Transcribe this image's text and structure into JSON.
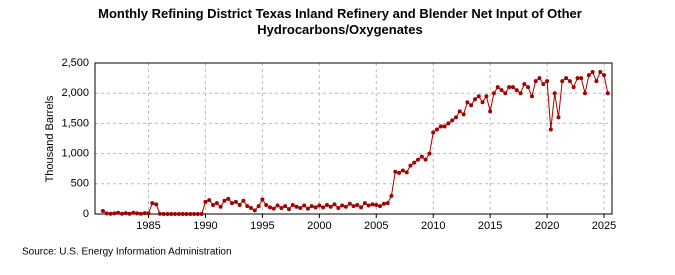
{
  "chart_data": {
    "type": "line",
    "title": "Monthly Refining District Texas Inland Refinery and Blender Net Input of Other Hydrocarbons/Oxygenates",
    "y_label": "Thousand Barrels",
    "source": "Source: U.S. Energy Information Administration",
    "series": [
      {
        "name": "Net Input",
        "color": "#a00000",
        "x": [
          1981,
          1981.33,
          1981.67,
          1982,
          1982.33,
          1982.67,
          1983,
          1983.33,
          1983.67,
          1984,
          1984.33,
          1984.67,
          1985,
          1985.33,
          1985.67,
          1986,
          1986.33,
          1986.67,
          1987,
          1987.33,
          1987.67,
          1988,
          1988.33,
          1988.67,
          1989,
          1989.33,
          1989.67,
          1990,
          1990.33,
          1990.67,
          1991,
          1991.33,
          1991.67,
          1992,
          1992.33,
          1992.67,
          1993,
          1993.33,
          1993.67,
          1994,
          1994.33,
          1994.67,
          1995,
          1995.33,
          1995.67,
          1996,
          1996.33,
          1996.67,
          1997,
          1997.33,
          1997.67,
          1998,
          1998.33,
          1998.67,
          1999,
          1999.33,
          1999.67,
          2000,
          2000.33,
          2000.67,
          2001,
          2001.33,
          2001.67,
          2002,
          2002.33,
          2002.67,
          2003,
          2003.33,
          2003.67,
          2004,
          2004.33,
          2004.67,
          2005,
          2005.33,
          2005.67,
          2006,
          2006.33,
          2006.67,
          2007,
          2007.33,
          2007.67,
          2008,
          2008.33,
          2008.67,
          2009,
          2009.33,
          2009.67,
          2010,
          2010.33,
          2010.67,
          2011,
          2011.33,
          2011.67,
          2012,
          2012.33,
          2012.67,
          2013,
          2013.33,
          2013.67,
          2014,
          2014.33,
          2014.67,
          2015,
          2015.33,
          2015.67,
          2016,
          2016.33,
          2016.67,
          2017,
          2017.33,
          2017.67,
          2018,
          2018.33,
          2018.67,
          2019,
          2019.33,
          2019.67,
          2020,
          2020.33,
          2020.67,
          2021,
          2021.33,
          2021.67,
          2022,
          2022.33,
          2022.67,
          2023,
          2023.33,
          2023.67,
          2024,
          2024.33,
          2024.67,
          2025,
          2025.33
        ],
        "values": [
          50,
          10,
          5,
          10,
          20,
          5,
          15,
          5,
          20,
          10,
          5,
          15,
          10,
          180,
          160,
          5,
          0,
          0,
          0,
          0,
          0,
          0,
          0,
          0,
          0,
          0,
          0,
          200,
          230,
          150,
          180,
          120,
          220,
          250,
          180,
          200,
          150,
          220,
          130,
          100,
          60,
          130,
          240,
          150,
          110,
          90,
          140,
          100,
          130,
          80,
          150,
          120,
          100,
          140,
          90,
          130,
          110,
          140,
          110,
          150,
          120,
          160,
          100,
          140,
          120,
          170,
          130,
          150,
          110,
          180,
          140,
          160,
          150,
          130,
          170,
          180,
          300,
          700,
          680,
          720,
          690,
          800,
          850,
          900,
          950,
          900,
          1000,
          1350,
          1400,
          1450,
          1450,
          1500,
          1550,
          1600,
          1700,
          1650,
          1850,
          1800,
          1900,
          1950,
          1850,
          1950,
          1700,
          2000,
          2100,
          2050,
          2000,
          2100,
          2100,
          2050,
          2000,
          2150,
          2100,
          1950,
          2200,
          2250,
          2150,
          2200,
          1400,
          2000,
          1600,
          2200,
          2250,
          2200,
          2100,
          2250,
          2250,
          2000,
          2300,
          2350,
          2200,
          2350,
          2300,
          2000
        ]
      }
    ],
    "xlim": [
      1980.3,
      2025.7
    ],
    "xticks": [
      1985,
      1990,
      1995,
      2000,
      2005,
      2010,
      2015,
      2020,
      2025
    ],
    "ylim": [
      0,
      2500
    ],
    "yticks": [
      0,
      500,
      {
        "value": 1000,
        "label": "1,000"
      },
      {
        "value": 1500,
        "label": "1,500"
      },
      {
        "value": 2000,
        "label": "2,000"
      },
      {
        "value": 2500,
        "label": "2,500"
      }
    ],
    "grid": true
  }
}
